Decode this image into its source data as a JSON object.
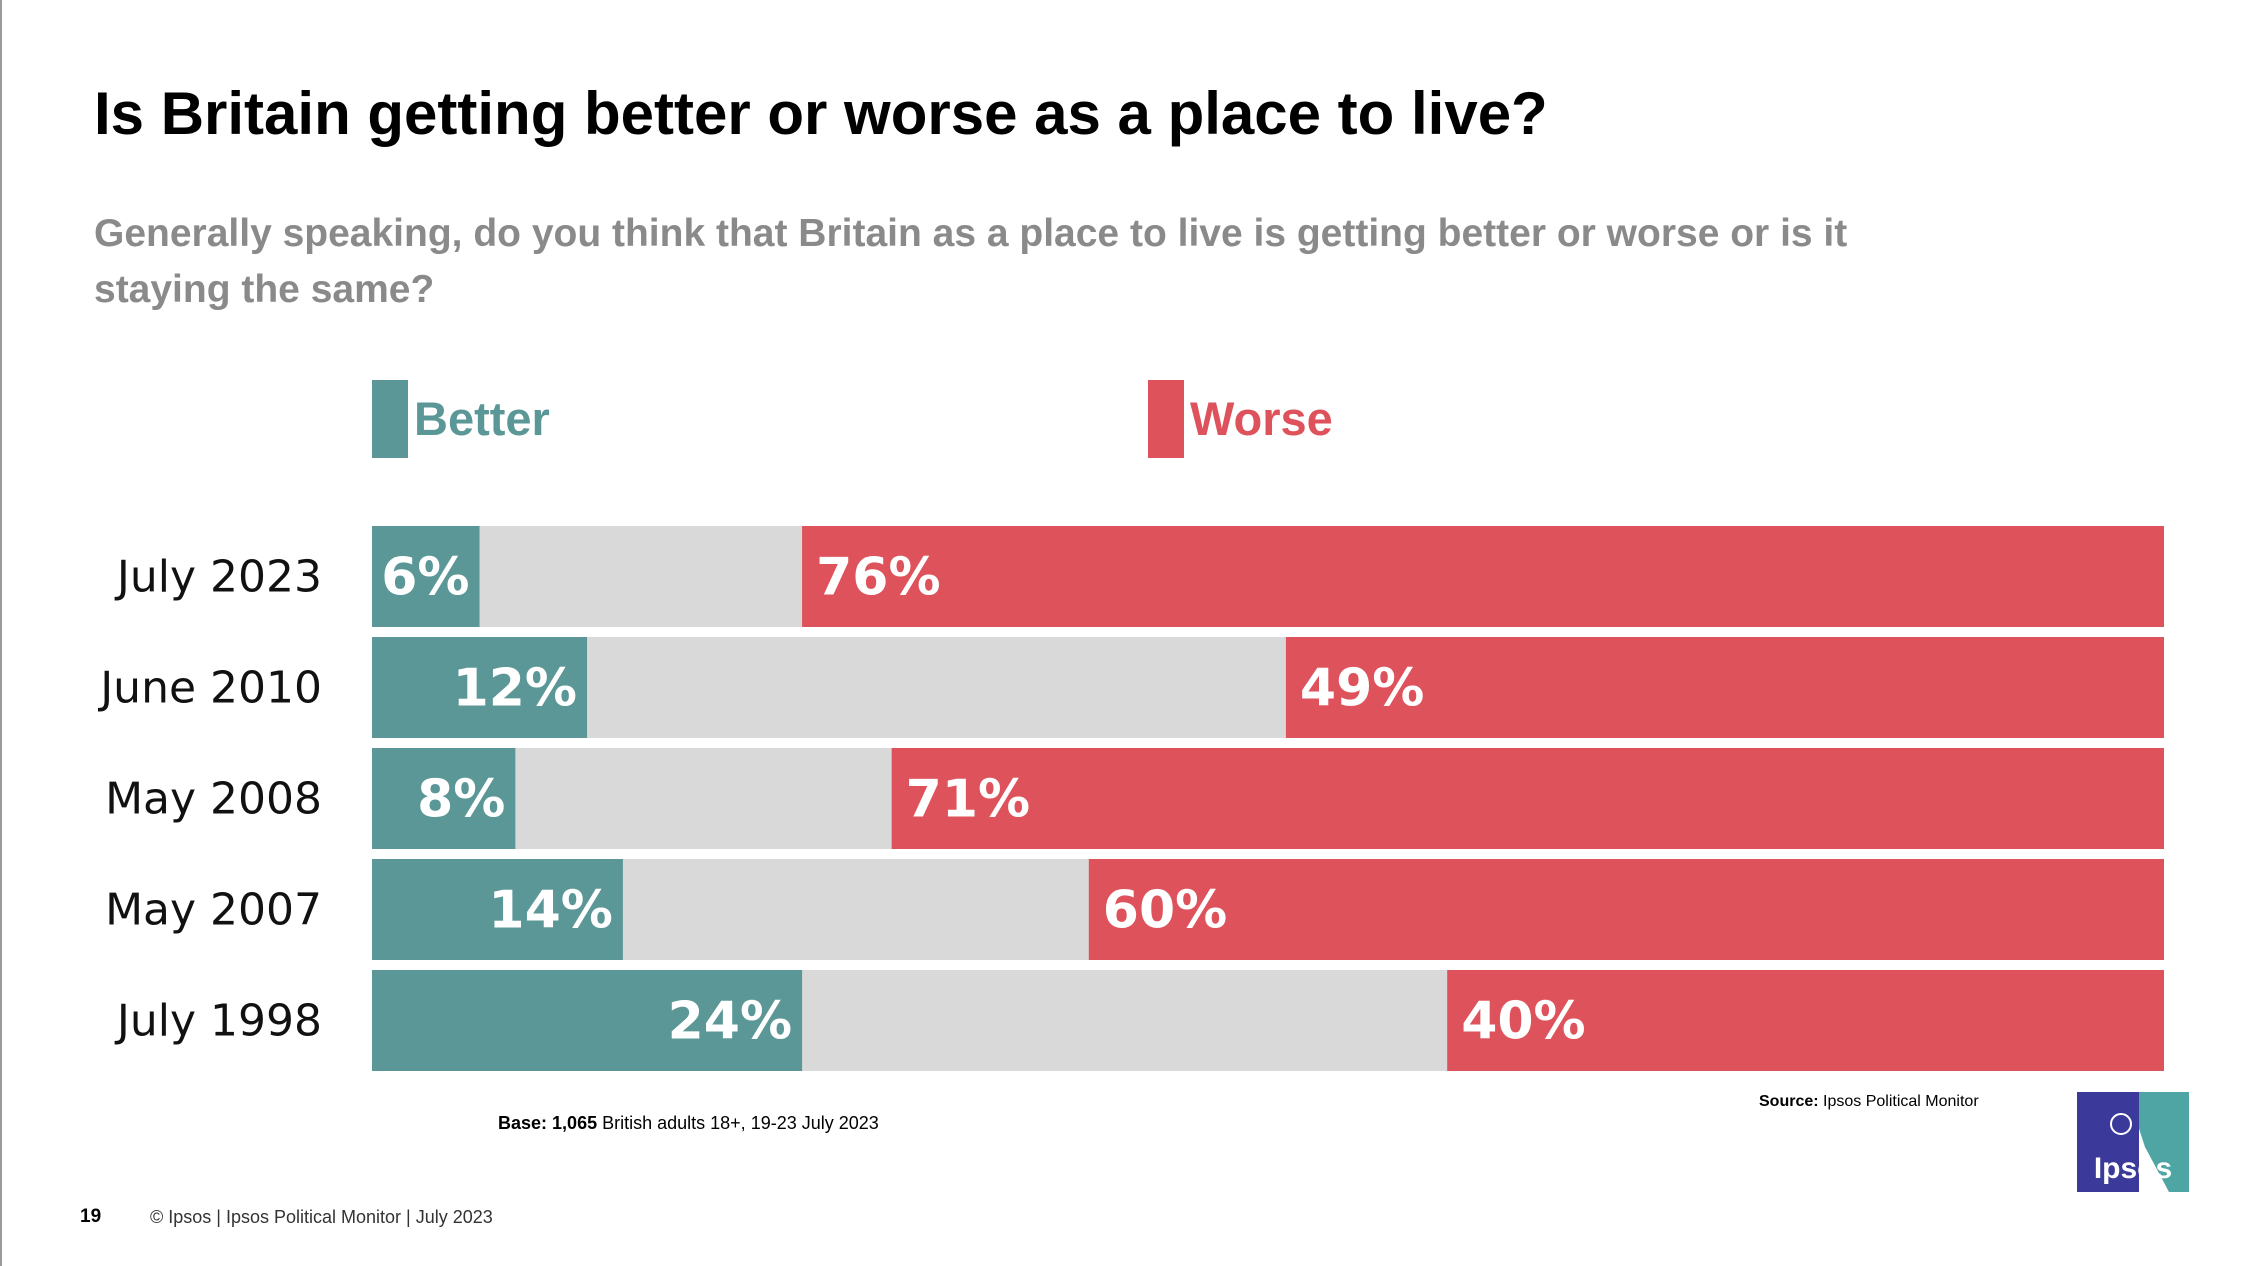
{
  "slide": {
    "title": "Is Britain getting better or worse as a place to live?",
    "subtitle": "Generally speaking, do you think that Britain as a place to live is getting better or worse or is it staying the same?",
    "page_number": "19",
    "footer": "© Ipsos | Ipsos Political Monitor | July 2023",
    "base_label": "Base:",
    "base_value": "1,065",
    "base_text": "British adults 18+, 19-23 July 2023",
    "source_label": "Source:",
    "source_text": "Ipsos  Political Monitor",
    "logo_text": "Ipsos"
  },
  "colors": {
    "better": "#5b9797",
    "worse": "#de525b",
    "neutral": "#d9d9d9",
    "subtitle": "#8a8a8a",
    "logo_blue": "#3b3a9b",
    "logo_teal": "#4ea5a3"
  },
  "chart_data": {
    "type": "bar",
    "orientation": "horizontal-stacked",
    "categories": [
      "July 2023",
      "June 2010",
      "May 2008",
      "May 2007",
      "July 1998"
    ],
    "series": [
      {
        "name": "Better",
        "values": [
          6,
          12,
          8,
          14,
          24
        ],
        "labels": [
          "6%",
          "12%",
          "8%",
          "14%",
          "24%"
        ],
        "color": "#5b9797"
      },
      {
        "name": "Worse",
        "values": [
          76,
          49,
          71,
          60,
          40
        ],
        "labels": [
          "76%",
          "49%",
          "71%",
          "60%",
          "40%"
        ],
        "color": "#de525b"
      }
    ],
    "remainder_color": "#d9d9d9",
    "xlim": [
      0,
      100
    ],
    "legend": "top",
    "grid": false
  }
}
